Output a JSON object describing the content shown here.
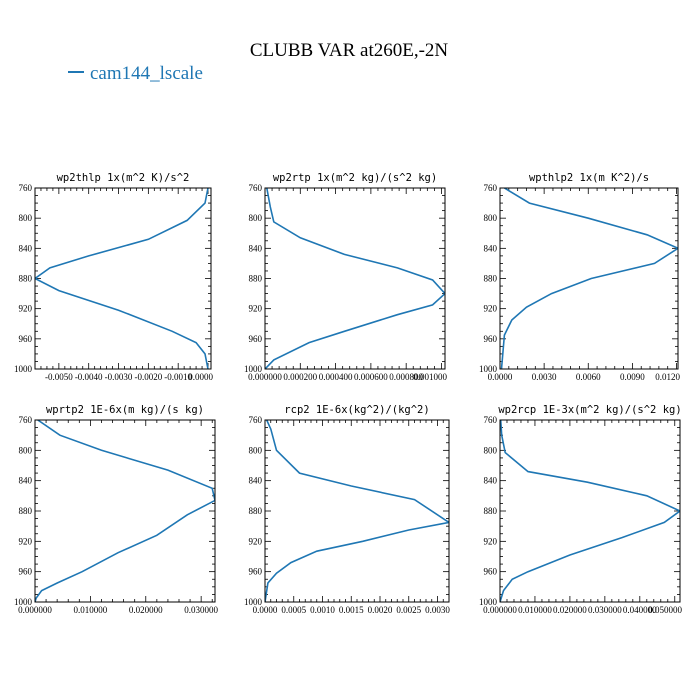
{
  "figure": {
    "title": "CLUBB VAR at260E,-2N",
    "legend": [
      {
        "label": "cam144_lscale",
        "color": "#1f77b4"
      }
    ]
  },
  "chart_data": [
    {
      "type": "line",
      "title": "wp2thlp  1x(m^2 K)/s^2",
      "xlim": [
        -0.0058,
        0.0001
      ],
      "ylim": [
        760,
        1000
      ],
      "y_inverted": true,
      "xticks": [
        "-0.0050",
        "-0.0040",
        "-0.0030",
        "-0.0020",
        "-0.0010",
        "0.0000"
      ],
      "xtick_values": [
        -0.005,
        -0.004,
        -0.003,
        -0.002,
        -0.001,
        0.0
      ],
      "yticks": [
        "760",
        "800",
        "840",
        "880",
        "920",
        "960",
        "1000"
      ],
      "series": [
        {
          "color": "#1f77b4",
          "x": [
            0.0,
            -0.0001,
            -0.0007,
            -0.002,
            -0.004,
            -0.0053,
            -0.0058,
            -0.005,
            -0.003,
            -0.0012,
            -0.0004,
            -0.0001,
            0.0
          ],
          "y": [
            760,
            780,
            803,
            828,
            850,
            866,
            880,
            896,
            922,
            950,
            965,
            980,
            1000
          ]
        }
      ]
    },
    {
      "type": "line",
      "title": "wp2rtp  1x(m^2 kg)/(s^2 kg)",
      "xlim": [
        0.0,
        0.00102
      ],
      "ylim": [
        760,
        1000
      ],
      "y_inverted": true,
      "xticks": [
        "0.000000",
        "0.000200",
        "0.000400",
        "0.000600",
        "0.000800",
        "0.001000"
      ],
      "xtick_values": [
        0.0,
        0.0002,
        0.0004,
        0.0006,
        0.0008,
        0.001
      ],
      "yticks": [
        "760",
        "800",
        "840",
        "880",
        "920",
        "960",
        "1000"
      ],
      "series": [
        {
          "color": "#1f77b4",
          "x": [
            1e-05,
            3e-05,
            5e-05,
            0.0002,
            0.00045,
            0.00075,
            0.00095,
            0.00102,
            0.00095,
            0.00075,
            0.00045,
            0.00025,
            5e-05,
            0.0
          ],
          "y": [
            760,
            785,
            805,
            826,
            848,
            866,
            882,
            900,
            915,
            928,
            950,
            965,
            988,
            1000
          ]
        }
      ]
    },
    {
      "type": "line",
      "title": "wpthlp2  1x(m K^2)/s",
      "xlim": [
        0.0,
        0.0121
      ],
      "ylim": [
        760,
        1000
      ],
      "y_inverted": true,
      "xticks": [
        "0.0000",
        "0.0030",
        "0.0060",
        "0.0090",
        "0.0120"
      ],
      "xtick_values": [
        0.0,
        0.003,
        0.006,
        0.009,
        0.012
      ],
      "yticks": [
        "760",
        "800",
        "840",
        "880",
        "920",
        "960",
        "1000"
      ],
      "series": [
        {
          "color": "#1f77b4",
          "x": [
            0.0003,
            0.002,
            0.006,
            0.01,
            0.0121,
            0.0105,
            0.0062,
            0.0035,
            0.0018,
            0.0008,
            0.0003,
            0.0001
          ],
          "y": [
            760,
            780,
            800,
            822,
            840,
            860,
            880,
            900,
            918,
            935,
            955,
            1000
          ]
        }
      ]
    },
    {
      "type": "line",
      "title": "wprtp2  1E-6x(m kg)/(s kg)",
      "xlim": [
        0.0,
        0.0325
      ],
      "ylim": [
        760,
        1000
      ],
      "y_inverted": true,
      "xticks": [
        "0.000000",
        "0.010000",
        "0.020000",
        "0.030000"
      ],
      "xtick_values": [
        0.0,
        0.01,
        0.02,
        0.03
      ],
      "yticks": [
        "760",
        "800",
        "840",
        "880",
        "920",
        "960",
        "1000"
      ],
      "series": [
        {
          "color": "#1f77b4",
          "x": [
            0.0005,
            0.0045,
            0.012,
            0.024,
            0.032,
            0.0325,
            0.0275,
            0.022,
            0.015,
            0.0085,
            0.004,
            0.0012,
            0.0002,
            0.0
          ],
          "y": [
            760,
            780,
            800,
            826,
            850,
            866,
            885,
            912,
            935,
            960,
            975,
            985,
            995,
            1000
          ]
        }
      ]
    },
    {
      "type": "line",
      "title": "rcp2  1E-6x(kg^2)/(kg^2)",
      "xlim": [
        0.0,
        0.0032
      ],
      "ylim": [
        760,
        1000
      ],
      "y_inverted": true,
      "xticks": [
        "0.0000",
        "0.0005",
        "0.0010",
        "0.0015",
        "0.0020",
        "0.0025",
        "0.0030"
      ],
      "xtick_values": [
        0.0,
        0.0005,
        0.001,
        0.0015,
        0.002,
        0.0025,
        0.003
      ],
      "yticks": [
        "760",
        "800",
        "840",
        "880",
        "920",
        "960",
        "1000"
      ],
      "series": [
        {
          "color": "#1f77b4",
          "x": [
            3e-05,
            0.0001,
            0.0002,
            0.0006,
            0.0015,
            0.0026,
            0.0032,
            0.0025,
            0.0017,
            0.0009,
            0.00045,
            0.0002,
            5e-05,
            0.0
          ],
          "y": [
            760,
            772,
            800,
            830,
            847,
            865,
            895,
            905,
            920,
            933,
            948,
            962,
            975,
            1000
          ]
        }
      ]
    },
    {
      "type": "line",
      "title": "wp2rcp  1E-3x(m^2 kg)/(s^2 kg)",
      "xlim": [
        0.0,
        0.0515
      ],
      "ylim": [
        760,
        1000
      ],
      "y_inverted": true,
      "xticks": [
        "0.000000",
        "0.010000",
        "0.020000",
        "0.030000",
        "0.040000",
        "0.050000"
      ],
      "xtick_values": [
        0.0,
        0.01,
        0.02,
        0.03,
        0.04,
        0.05
      ],
      "yticks": [
        "760",
        "800",
        "840",
        "880",
        "920",
        "960",
        "1000"
      ],
      "series": [
        {
          "color": "#1f77b4",
          "x": [
            0.0002,
            0.0005,
            0.0015,
            0.008,
            0.025,
            0.042,
            0.0515,
            0.047,
            0.035,
            0.02,
            0.008,
            0.0035,
            0.001,
            0.0
          ],
          "y": [
            760,
            780,
            803,
            828,
            842,
            860,
            880,
            895,
            915,
            938,
            960,
            970,
            985,
            1000
          ]
        }
      ]
    }
  ]
}
